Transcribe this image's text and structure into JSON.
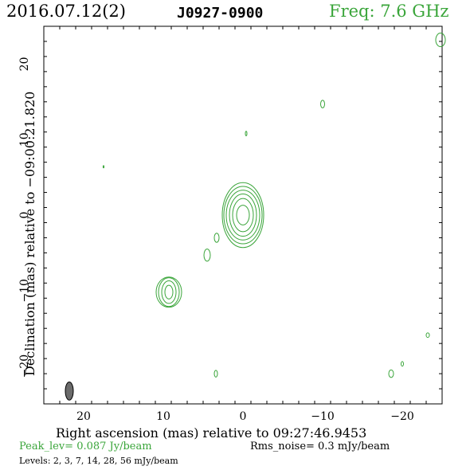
{
  "header": {
    "date": "2016.07.12(2)",
    "source": "J0927-0900",
    "freq": "Freq: 7.6 GHz"
  },
  "axes": {
    "xlabel": "Right ascension (mas) relative to 09:27:46.9453",
    "ylabel": "Declination (mas) relative to −09:00:21.820"
  },
  "footer": {
    "peak": "Peak_lev=  0.087 Jy/beam",
    "rms": "Rms_noise=   0.3 mJy/beam",
    "levels": "Levels:   2,   3,   7,  14,  28,  56 mJy/beam"
  },
  "colors": {
    "contour": "#3aa53a",
    "axes": "#000000",
    "beam": "#6b6b6b"
  },
  "chart_data": {
    "type": "contour",
    "x_ticks": [
      20,
      10,
      0,
      -10,
      -20
    ],
    "x_tick_labels": [
      "20",
      "10",
      "0",
      "−10",
      "−20"
    ],
    "y_ticks": [
      20,
      10,
      0,
      -10,
      -20
    ],
    "y_tick_labels": [
      "20",
      "10",
      "0",
      "−10",
      "−20"
    ],
    "xlim": [
      25,
      -25
    ],
    "ylim": [
      -25,
      25
    ],
    "x_direction": "decreasing",
    "levels_mJy": [
      2,
      3,
      7,
      14,
      28,
      56
    ],
    "components": [
      {
        "name": "core",
        "x": 0,
        "y": 0,
        "rx": [
          0.8,
          1.3,
          1.7,
          2.1,
          2.4,
          2.6
        ],
        "ry": [
          1.3,
          2.2,
          2.8,
          3.3,
          3.8,
          4.3
        ]
      },
      {
        "name": "jet-knot",
        "x": 9.3,
        "y": -10.2,
        "rx": [
          0.5,
          0.9,
          1.3,
          1.6
        ],
        "ry": [
          0.9,
          1.5,
          1.9,
          2.0
        ]
      },
      {
        "name": "blob-1",
        "x": 4.5,
        "y": -5.3,
        "rx": [
          0.4
        ],
        "ry": [
          0.8
        ]
      },
      {
        "name": "blob-2",
        "x": 3.3,
        "y": -3.0,
        "rx": [
          0.3
        ],
        "ry": [
          0.6
        ]
      },
      {
        "name": "blob-3",
        "x": -0.4,
        "y": 10.8,
        "rx": [
          0.1
        ],
        "ry": [
          0.3
        ]
      },
      {
        "name": "blob-4",
        "x": -10.0,
        "y": 14.7,
        "rx": [
          0.25
        ],
        "ry": [
          0.5
        ]
      },
      {
        "name": "blob-5",
        "x": -24.8,
        "y": 23.2,
        "rx": [
          0.6
        ],
        "ry": [
          0.9
        ]
      },
      {
        "name": "blob-6",
        "x": -23.2,
        "y": -15.9,
        "rx": [
          0.2
        ],
        "ry": [
          0.3
        ]
      },
      {
        "name": "blob-7",
        "x": -20.0,
        "y": -19.7,
        "rx": [
          0.15
        ],
        "ry": [
          0.3
        ]
      },
      {
        "name": "blob-8",
        "x": -18.6,
        "y": -21.0,
        "rx": [
          0.3
        ],
        "ry": [
          0.5
        ]
      },
      {
        "name": "blob-9",
        "x": 3.4,
        "y": -21.0,
        "rx": [
          0.2
        ],
        "ry": [
          0.45
        ]
      },
      {
        "name": "blob-10",
        "x": 17.5,
        "y": 6.4,
        "rx": [
          0.05
        ],
        "ry": [
          0.15
        ]
      }
    ],
    "beam": {
      "x": 21.8,
      "y": -23.3,
      "major": 2.4,
      "minor": 1.0,
      "pa": 0
    }
  }
}
